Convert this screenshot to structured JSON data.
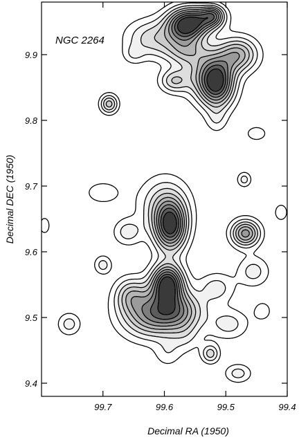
{
  "chart_data": {
    "type": "contour",
    "title": "",
    "annotation": "NGC 2264",
    "xlabel": "Decimal RA (1950)",
    "ylabel": "Decimal DEC (1950)",
    "xlim": [
      99.8,
      99.4
    ],
    "ylim": [
      9.38,
      9.98
    ],
    "x_ticks": [
      99.7,
      99.6,
      99.5,
      99.4
    ],
    "x_tick_labels": [
      "99.7",
      "99.6",
      "99.5",
      "99.4"
    ],
    "y_ticks": [
      9.4,
      9.5,
      9.6,
      9.7,
      9.8,
      9.9
    ],
    "y_tick_labels": [
      "9.4",
      "9.5",
      "9.6",
      "9.7",
      "9.8",
      "9.9"
    ],
    "x_axis_reversed": true,
    "grid": false,
    "peaks": [
      {
        "ra": 99.565,
        "dec": 9.945,
        "levels": 9,
        "sx": 0.022,
        "sy": 0.018
      },
      {
        "ra": 99.53,
        "dec": 9.955,
        "levels": 4,
        "sx": 0.02,
        "sy": 0.014
      },
      {
        "ra": 99.52,
        "dec": 9.96,
        "levels": 3,
        "sx": 0.012,
        "sy": 0.01
      },
      {
        "ra": 99.62,
        "dec": 9.925,
        "levels": 3,
        "sx": 0.03,
        "sy": 0.02
      },
      {
        "ra": 99.565,
        "dec": 9.905,
        "levels": 3,
        "sx": 0.025,
        "sy": 0.015
      },
      {
        "ra": 99.515,
        "dec": 9.858,
        "levels": 9,
        "sx": 0.02,
        "sy": 0.026
      },
      {
        "ra": 99.48,
        "dec": 9.9,
        "levels": 5,
        "sx": 0.022,
        "sy": 0.018
      },
      {
        "ra": 99.585,
        "dec": 9.86,
        "levels": 3,
        "sx": 0.016,
        "sy": 0.012
      },
      {
        "ra": 99.545,
        "dec": 9.87,
        "levels": 2,
        "sx": 0.025,
        "sy": 0.025
      },
      {
        "ra": 99.69,
        "dec": 9.825,
        "levels": 4,
        "sx": 0.01,
        "sy": 0.01
      },
      {
        "ra": 99.515,
        "dec": 9.8,
        "levels": 1,
        "sx": 0.012,
        "sy": 0.014
      },
      {
        "ra": 99.65,
        "dec": 9.9,
        "levels": 1,
        "sx": 0.012,
        "sy": 0.01
      },
      {
        "ra": 99.59,
        "dec": 9.638,
        "levels": 8,
        "sx": 0.018,
        "sy": 0.026
      },
      {
        "ra": 99.6,
        "dec": 9.67,
        "levels": 3,
        "sx": 0.028,
        "sy": 0.03
      },
      {
        "ra": 99.468,
        "dec": 9.628,
        "levels": 6,
        "sx": 0.016,
        "sy": 0.014
      },
      {
        "ra": 99.66,
        "dec": 9.63,
        "levels": 2,
        "sx": 0.016,
        "sy": 0.014
      },
      {
        "ra": 99.7,
        "dec": 9.69,
        "levels": 1,
        "sx": 0.025,
        "sy": 0.015
      },
      {
        "ra": 99.595,
        "dec": 9.552,
        "levels": 9,
        "sx": 0.018,
        "sy": 0.02
      },
      {
        "ra": 99.62,
        "dec": 9.505,
        "levels": 6,
        "sx": 0.035,
        "sy": 0.025
      },
      {
        "ra": 99.575,
        "dec": 9.51,
        "levels": 4,
        "sx": 0.028,
        "sy": 0.02
      },
      {
        "ra": 99.655,
        "dec": 9.535,
        "levels": 3,
        "sx": 0.018,
        "sy": 0.018
      },
      {
        "ra": 99.515,
        "dec": 9.545,
        "levels": 2,
        "sx": 0.02,
        "sy": 0.016
      },
      {
        "ra": 99.455,
        "dec": 9.57,
        "levels": 2,
        "sx": 0.018,
        "sy": 0.016
      },
      {
        "ra": 99.7,
        "dec": 9.58,
        "levels": 2,
        "sx": 0.01,
        "sy": 0.01
      },
      {
        "ra": 99.755,
        "dec": 9.49,
        "levels": 2,
        "sx": 0.013,
        "sy": 0.012
      },
      {
        "ra": 99.495,
        "dec": 9.49,
        "levels": 2,
        "sx": 0.022,
        "sy": 0.016
      },
      {
        "ra": 99.525,
        "dec": 9.445,
        "levels": 3,
        "sx": 0.01,
        "sy": 0.01
      },
      {
        "ra": 99.565,
        "dec": 9.47,
        "levels": 1,
        "sx": 0.018,
        "sy": 0.018
      },
      {
        "ra": 99.595,
        "dec": 9.445,
        "levels": 1,
        "sx": 0.015,
        "sy": 0.015
      },
      {
        "ra": 99.48,
        "dec": 9.415,
        "levels": 2,
        "sx": 0.015,
        "sy": 0.01
      },
      {
        "ra": 99.47,
        "dec": 9.71,
        "levels": 2,
        "sx": 0.008,
        "sy": 0.008
      },
      {
        "ra": 99.795,
        "dec": 9.64,
        "levels": 1,
        "sx": 0.008,
        "sy": 0.012
      },
      {
        "ra": 99.44,
        "dec": 9.51,
        "levels": 1,
        "sx": 0.012,
        "sy": 0.012
      },
      {
        "ra": 99.41,
        "dec": 9.66,
        "levels": 1,
        "sx": 0.01,
        "sy": 0.012
      },
      {
        "ra": 99.45,
        "dec": 9.78,
        "levels": 1,
        "sx": 0.015,
        "sy": 0.01
      }
    ]
  }
}
